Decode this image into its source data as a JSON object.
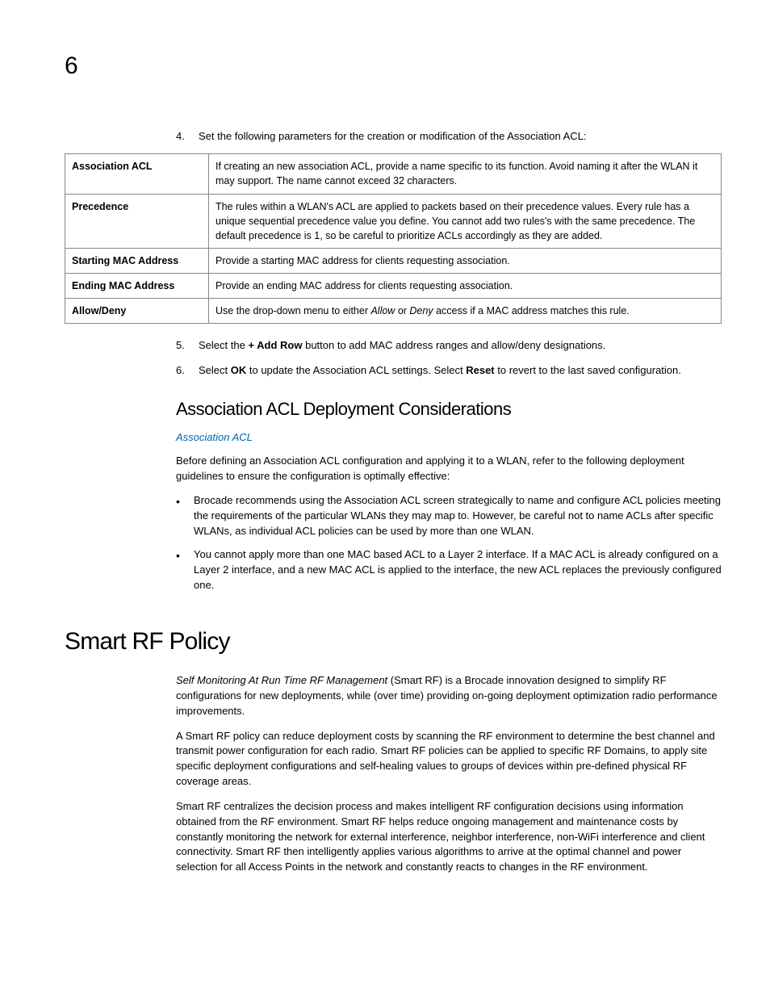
{
  "chapter_number": "6",
  "step4": {
    "num": "4.",
    "text_a": "Set the following parameters for the creation or modification of the Association ACL:"
  },
  "table": {
    "rows": [
      {
        "label": "Association ACL",
        "desc": "If creating an new association ACL, provide a name specific to its function. Avoid naming it after the WLAN it may support. The name cannot exceed 32 characters."
      },
      {
        "label": "Precedence",
        "desc": "The rules within a WLAN's ACL are applied to packets based on their precedence values. Every rule has a unique sequential precedence value you define. You cannot add two rules's with the same precedence. The default precedence is 1, so be careful to prioritize ACLs accordingly as they are added."
      },
      {
        "label": "Starting MAC Address",
        "desc": "Provide a starting MAC address for clients requesting association."
      },
      {
        "label": "Ending MAC Address",
        "desc": "Provide an ending MAC address for clients requesting association."
      }
    ],
    "allow_deny": {
      "label": "Allow/Deny",
      "pre": "Use the drop-down menu to either ",
      "allow": "Allow",
      "mid": " or ",
      "deny": "Deny",
      "post": " access if a MAC address matches this rule."
    }
  },
  "step5": {
    "num": "5.",
    "pre": "Select the ",
    "bold": "+ Add Row",
    "post": " button to add MAC address ranges and allow/deny designations."
  },
  "step6": {
    "num": "6.",
    "pre": "Select ",
    "ok": "OK",
    "mid1": " to update the Association ACL settings. Select ",
    "reset": "Reset",
    "post": " to revert to the last saved configuration."
  },
  "sub_heading": "Association ACL Deployment Considerations",
  "sub_link": "Association ACL",
  "sub_intro": "Before defining an Association ACL configuration and applying it to a WLAN, refer to the following deployment guidelines to ensure the configuration is optimally effective:",
  "sub_bullets": [
    "Brocade recommends using the Association ACL screen strategically to name and configure ACL policies meeting the requirements of the particular WLANs they may map to. However, be careful not to name ACLs after specific WLANs, as individual ACL policies can be used by more than one WLAN.",
    "You cannot apply more than one MAC based ACL to a Layer 2 interface. If a MAC ACL is already configured on a Layer 2 interface, and a new MAC ACL is applied to the interface, the new ACL replaces the previously configured one."
  ],
  "main_heading": "Smart RF Policy",
  "smart_rf": {
    "p1_em": "Self Monitoring At Run Time RF Management",
    "p1_rest": " (Smart RF) is a Brocade innovation designed to simplify RF configurations for new deployments, while (over time) providing on-going deployment optimization radio performance improvements.",
    "p2": "A Smart RF policy can reduce deployment costs by scanning the RF environment to determine the best channel and transmit power configuration for each radio. Smart RF policies can be applied to specific RF Domains, to apply site specific deployment configurations and self-healing values to groups of devices within pre-defined physical RF coverage areas.",
    "p3": "Smart RF centralizes the decision process and makes intelligent RF configuration decisions using information obtained from the RF environment. Smart RF helps reduce ongoing management and maintenance costs by constantly monitoring the network for external interference, neighbor interference, non-WiFi interference and client connectivity. Smart RF then intelligently applies various algorithms to arrive at the optimal channel and power selection for all Access Points in the network and constantly reacts to changes in the RF environment."
  }
}
